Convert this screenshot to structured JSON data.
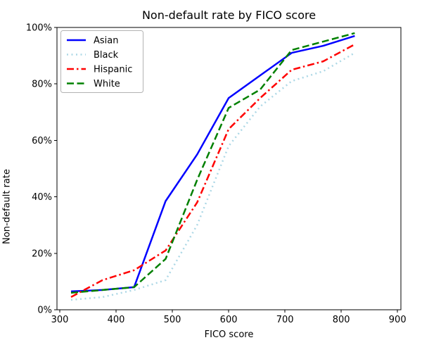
{
  "figure": {
    "title": "Non-default rate by FICO score",
    "xlabel": "FICO score",
    "ylabel": "Non-default rate"
  },
  "chart_data": {
    "type": "line",
    "title": "Non-default rate by FICO score",
    "xlabel": "FICO score",
    "ylabel": "Non-default rate",
    "xlim": [
      295,
      906
    ],
    "ylim": [
      0,
      100
    ],
    "xticks": [
      300,
      400,
      500,
      600,
      700,
      800,
      900
    ],
    "xtick_labels": [
      "300",
      "400",
      "500",
      "600",
      "700",
      "800",
      "900"
    ],
    "yticks": [
      0,
      20,
      40,
      60,
      80,
      100
    ],
    "ytick_labels": [
      "0%",
      "20%",
      "40%",
      "60%",
      "80%",
      "100%"
    ],
    "grid": false,
    "legend_position": "upper-left",
    "x": [
      320,
      376,
      432,
      488,
      544,
      600,
      656,
      712,
      768,
      824
    ],
    "series": [
      {
        "name": "Asian",
        "color": "#0000ff",
        "style": "solid",
        "values": [
          6.5,
          7,
          8,
          38.5,
          55,
          75,
          83,
          91,
          93.5,
          97
        ]
      },
      {
        "name": "Black",
        "color": "#add8e6",
        "style": "dotted",
        "values": [
          3.5,
          4.5,
          7,
          10.5,
          30,
          58,
          72,
          81,
          84.5,
          91
        ]
      },
      {
        "name": "Hispanic",
        "color": "#ff0000",
        "style": "dashdot",
        "values": [
          4.5,
          10.5,
          14,
          21,
          38,
          64,
          75,
          85,
          88,
          94
        ]
      },
      {
        "name": "White",
        "color": "#008000",
        "style": "dashed",
        "values": [
          6,
          7,
          8,
          18,
          46,
          71.5,
          78,
          92,
          95,
          98
        ]
      }
    ]
  }
}
